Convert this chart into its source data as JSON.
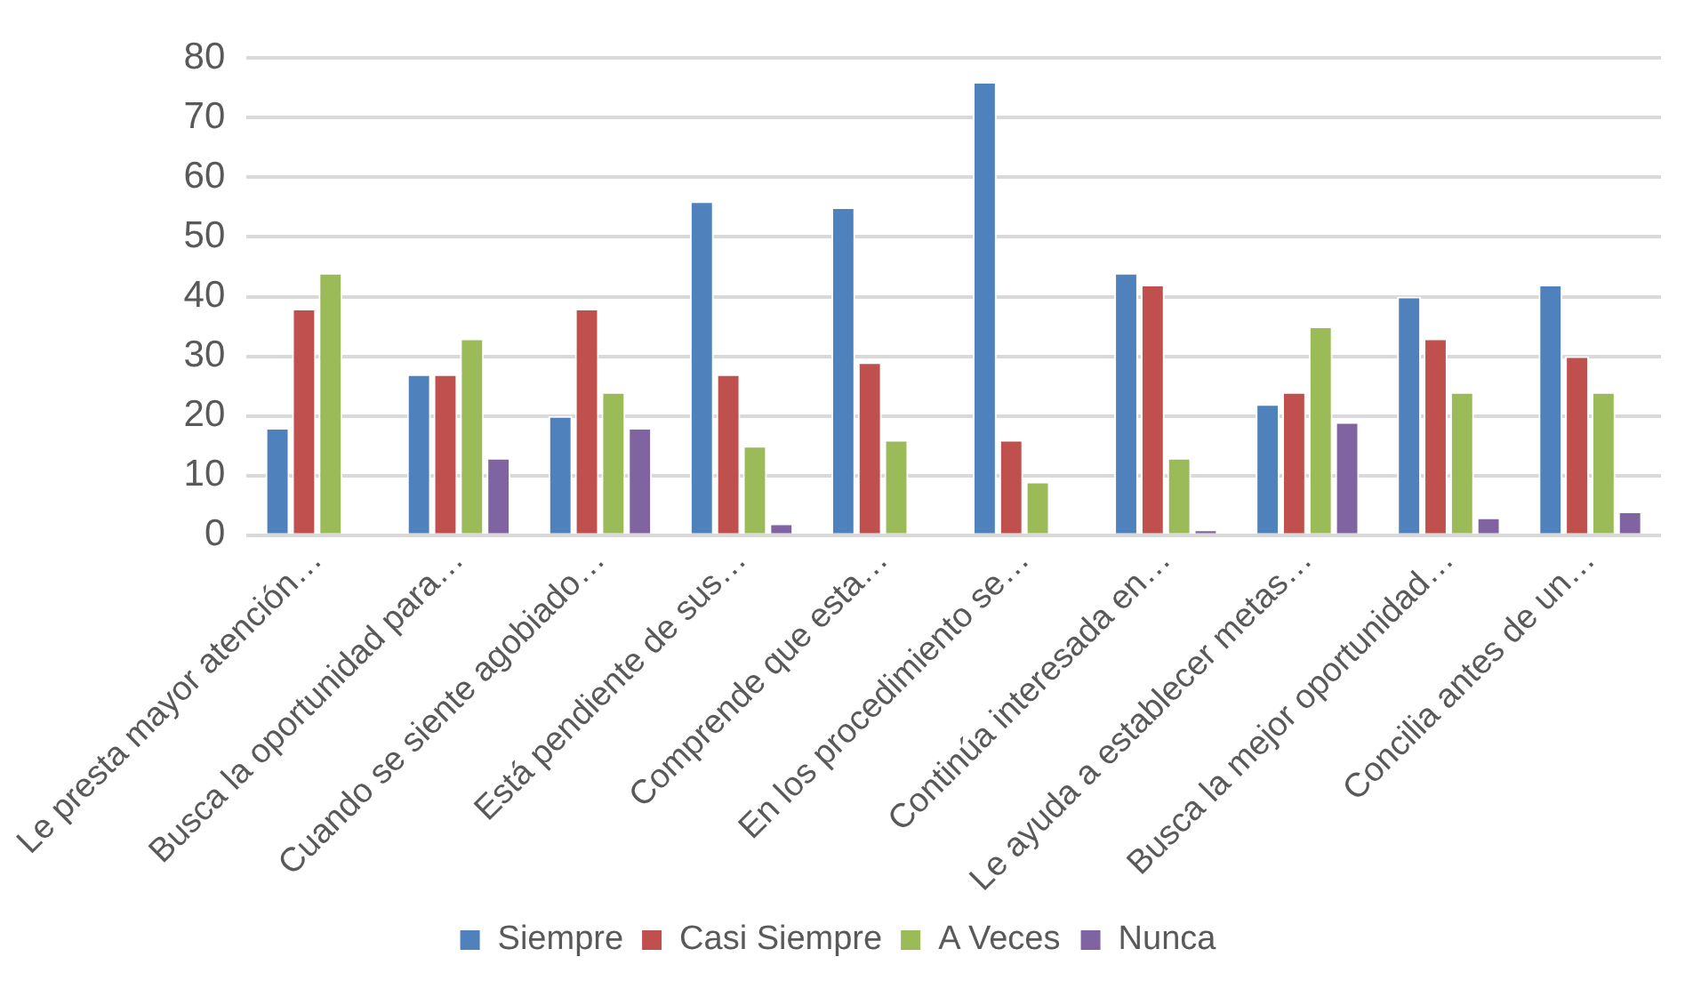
{
  "chart_data": {
    "type": "bar",
    "categories": [
      "Le presta mayor atención…",
      "Busca la oportunidad para…",
      "Cuando se siente agobiado…",
      "Está pendiente de sus…",
      "Comprende que esta…",
      "En los procedimiento se…",
      "Continúa interesada en…",
      "Le ayuda a establecer metas…",
      "Busca la mejor oportunidad…",
      "Concilia antes de un…"
    ],
    "series": [
      {
        "name": "Siempre",
        "color": "#4f81bd",
        "values": [
          18,
          27,
          20,
          56,
          55,
          76,
          44,
          22,
          40,
          42
        ]
      },
      {
        "name": "Casi Siempre",
        "color": "#c0504d",
        "values": [
          38,
          27,
          38,
          27,
          29,
          16,
          42,
          24,
          33,
          30
        ]
      },
      {
        "name": "A Veces",
        "color": "#9bbb59",
        "values": [
          44,
          33,
          24,
          15,
          16,
          9,
          13,
          35,
          24,
          24
        ]
      },
      {
        "name": "Nunca",
        "color": "#8064a2",
        "values": [
          0,
          13,
          18,
          2,
          0,
          0,
          1,
          19,
          3,
          4
        ]
      }
    ],
    "ylim": [
      0,
      80
    ],
    "yticks": [
      0,
      10,
      20,
      30,
      40,
      50,
      60,
      70,
      80
    ],
    "grid": "y",
    "legend": "bottom"
  }
}
